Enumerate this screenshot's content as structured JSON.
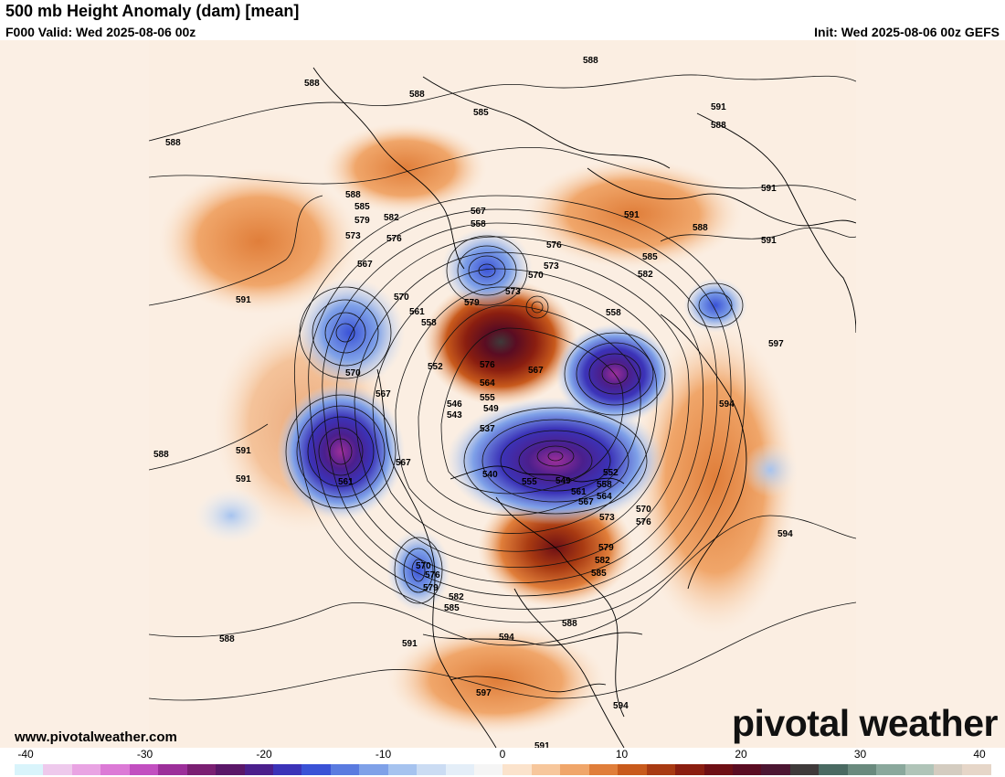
{
  "header": {
    "title": "500 mb Height Anomaly (dam) [mean]",
    "valid": "F000 Valid: Wed 2025-08-06 00z",
    "init": "Init: Wed 2025-08-06 00z GEFS"
  },
  "footer": {
    "site_url": "www.pivotalweather.com",
    "brand": "pivotal weather"
  },
  "colorbar": {
    "ticks": [
      "-40",
      "-30",
      "-20",
      "-10",
      "0",
      "10",
      "20",
      "30",
      "40"
    ],
    "colors": [
      "#d9f4fb",
      "#eec9ec",
      "#e9a4e3",
      "#dc7ad6",
      "#c24fc0",
      "#9c2f9a",
      "#7a1f72",
      "#5a1768",
      "#4b1f8c",
      "#3b33b8",
      "#3a52d6",
      "#5a7be0",
      "#7fa1e8",
      "#a6c3ef",
      "#cbdcf3",
      "#e4eef8",
      "#f5f5f5",
      "#fbe3cc",
      "#f7c79c",
      "#f0a66a",
      "#e07e3a",
      "#c85a1c",
      "#a83a12",
      "#8a1e10",
      "#6e0f14",
      "#5a0c22",
      "#4c1632",
      "#3f3a3a",
      "#4a6a62",
      "#6a8a7e",
      "#8aa89c",
      "#b0c4b8",
      "#d4ccc0",
      "#e6d6c8"
    ]
  },
  "map": {
    "contour_labels": [
      "588",
      "585",
      "582",
      "579",
      "576",
      "573",
      "570",
      "567",
      "564",
      "561",
      "558",
      "555",
      "552",
      "549",
      "546",
      "543",
      "540",
      "537",
      "591",
      "594",
      "597"
    ],
    "placed_labels": [
      {
        "text": "588",
        "id": "a"
      },
      {
        "text": "588",
        "id": "b"
      },
      {
        "text": "585",
        "id": "c"
      },
      {
        "text": "588",
        "id": "d"
      },
      {
        "text": "588",
        "id": "e"
      },
      {
        "text": "591",
        "id": "f"
      },
      {
        "text": "588",
        "id": "g"
      },
      {
        "text": "588",
        "id": "h"
      },
      {
        "text": "585",
        "id": "i"
      },
      {
        "text": "579",
        "id": "j"
      },
      {
        "text": "582",
        "id": "k"
      },
      {
        "text": "573",
        "id": "l"
      },
      {
        "text": "576",
        "id": "m"
      },
      {
        "text": "567",
        "id": "n"
      },
      {
        "text": "567",
        "id": "o"
      },
      {
        "text": "558",
        "id": "p"
      },
      {
        "text": "576",
        "id": "q"
      },
      {
        "text": "573",
        "id": "r"
      },
      {
        "text": "570",
        "id": "s"
      },
      {
        "text": "591",
        "id": "t"
      },
      {
        "text": "591",
        "id": "u"
      },
      {
        "text": "591",
        "id": "v"
      },
      {
        "text": "585",
        "id": "w"
      },
      {
        "text": "582",
        "id": "x"
      },
      {
        "text": "588",
        "id": "y"
      },
      {
        "text": "570",
        "id": "z"
      },
      {
        "text": "561",
        "id": "aa"
      },
      {
        "text": "558",
        "id": "ab"
      },
      {
        "text": "579",
        "id": "ac"
      },
      {
        "text": "573",
        "id": "ad"
      },
      {
        "text": "576",
        "id": "ae"
      },
      {
        "text": "564",
        "id": "af"
      },
      {
        "text": "567",
        "id": "ag"
      },
      {
        "text": "555",
        "id": "ah"
      },
      {
        "text": "552",
        "id": "ai"
      },
      {
        "text": "549",
        "id": "aj"
      },
      {
        "text": "546",
        "id": "ak"
      },
      {
        "text": "543",
        "id": "al"
      },
      {
        "text": "537",
        "id": "am"
      },
      {
        "text": "558",
        "id": "an"
      },
      {
        "text": "597",
        "id": "ao"
      },
      {
        "text": "570",
        "id": "ap"
      },
      {
        "text": "567",
        "id": "aq"
      },
      {
        "text": "591",
        "id": "ar"
      },
      {
        "text": "591",
        "id": "as"
      },
      {
        "text": "561",
        "id": "at"
      },
      {
        "text": "567",
        "id": "au"
      },
      {
        "text": "540",
        "id": "av"
      },
      {
        "text": "555",
        "id": "aw"
      },
      {
        "text": "549",
        "id": "ax"
      },
      {
        "text": "552",
        "id": "ay"
      },
      {
        "text": "558",
        "id": "az"
      },
      {
        "text": "561",
        "id": "ba"
      },
      {
        "text": "564",
        "id": "bb"
      },
      {
        "text": "567",
        "id": "bc"
      },
      {
        "text": "570",
        "id": "bd"
      },
      {
        "text": "573",
        "id": "be"
      },
      {
        "text": "576",
        "id": "bf"
      },
      {
        "text": "594",
        "id": "bg"
      },
      {
        "text": "594",
        "id": "bh"
      },
      {
        "text": "579",
        "id": "bi"
      },
      {
        "text": "582",
        "id": "bj"
      },
      {
        "text": "585",
        "id": "bk"
      },
      {
        "text": "570",
        "id": "bl"
      },
      {
        "text": "576",
        "id": "bm"
      },
      {
        "text": "579",
        "id": "bn"
      },
      {
        "text": "582",
        "id": "bo"
      },
      {
        "text": "585",
        "id": "bp"
      },
      {
        "text": "588",
        "id": "bq"
      },
      {
        "text": "591",
        "id": "br"
      },
      {
        "text": "594",
        "id": "bs"
      },
      {
        "text": "597",
        "id": "bt"
      },
      {
        "text": "594",
        "id": "bu"
      },
      {
        "text": "591",
        "id": "bv"
      },
      {
        "text": "588",
        "id": "bw"
      },
      {
        "text": "591",
        "id": "bx"
      },
      {
        "text": "588",
        "id": "by"
      }
    ]
  }
}
